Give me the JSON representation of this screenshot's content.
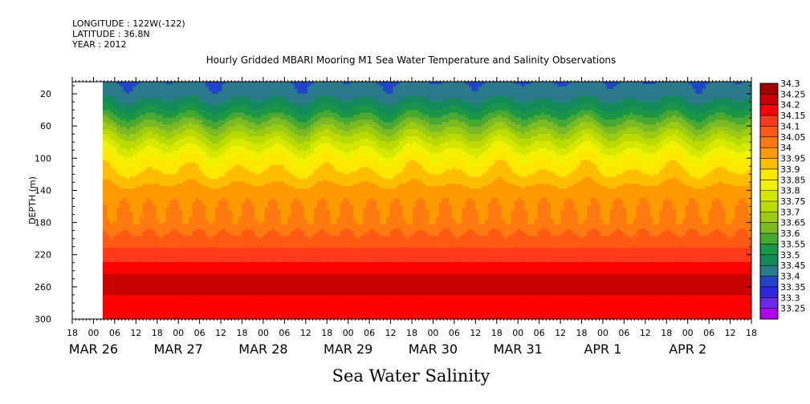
{
  "header": {
    "longitude": "LONGITUDE : 122W(-122)",
    "latitude": "LATITUDE : 36.8N",
    "year": "YEAR : 2012"
  },
  "chart_data": {
    "type": "heatmap",
    "title": "Hourly Gridded MBARI Mooring M1 Sea Water Temperature and Salinity Observations",
    "xlabel": "Sea Water Salinity",
    "ylabel": "DEPTH (m)",
    "ylim": [
      300,
      5
    ],
    "y_ticks": [
      20,
      60,
      100,
      140,
      180,
      220,
      260,
      300
    ],
    "x_range_hours": [
      -6,
      186
    ],
    "x_hour_ticks": [
      "18",
      "00",
      "06",
      "12",
      "18",
      "00",
      "06",
      "12",
      "18",
      "00",
      "06",
      "12",
      "18",
      "00",
      "06",
      "12",
      "18",
      "00",
      "06",
      "12",
      "18",
      "00",
      "06",
      "12",
      "18",
      "00",
      "06",
      "12",
      "18",
      "00",
      "06",
      "12",
      "18"
    ],
    "x_date_labels": [
      "MAR 26",
      "MAR 27",
      "MAR 28",
      "MAR 29",
      "MAR 30",
      "MAR 31",
      "APR  1",
      "APR  2"
    ],
    "data_start_hour": 0,
    "colorbar": {
      "levels": [
        34.3,
        34.25,
        34.2,
        34.15,
        34.1,
        34.05,
        34,
        33.95,
        33.9,
        33.85,
        33.8,
        33.75,
        33.7,
        33.65,
        33.6,
        33.55,
        33.5,
        33.45,
        33.4,
        33.35,
        33.3,
        33.25
      ],
      "colors": [
        "#a00000",
        "#c80000",
        "#ff0000",
        "#ff3a1a",
        "#ff5a14",
        "#ff7a10",
        "#ff9a00",
        "#ffbe00",
        "#ffe800",
        "#f2f200",
        "#d6e800",
        "#bbdb00",
        "#9ccb14",
        "#7cba24",
        "#49a832",
        "#1a9646",
        "#148a5a",
        "#2a7a8c",
        "#2244c8",
        "#2a2adc",
        "#6a2ae6",
        "#b000f0"
      ]
    },
    "profile": {
      "depths": [
        5,
        20,
        40,
        60,
        80,
        100,
        120,
        140,
        160,
        180,
        200,
        220,
        240,
        260,
        280,
        300
      ],
      "salinity": [
        33.45,
        33.47,
        33.56,
        33.68,
        33.8,
        33.9,
        33.96,
        34.02,
        34.05,
        34.06,
        34.12,
        34.17,
        34.24,
        34.28,
        34.22,
        34.2
      ]
    }
  }
}
